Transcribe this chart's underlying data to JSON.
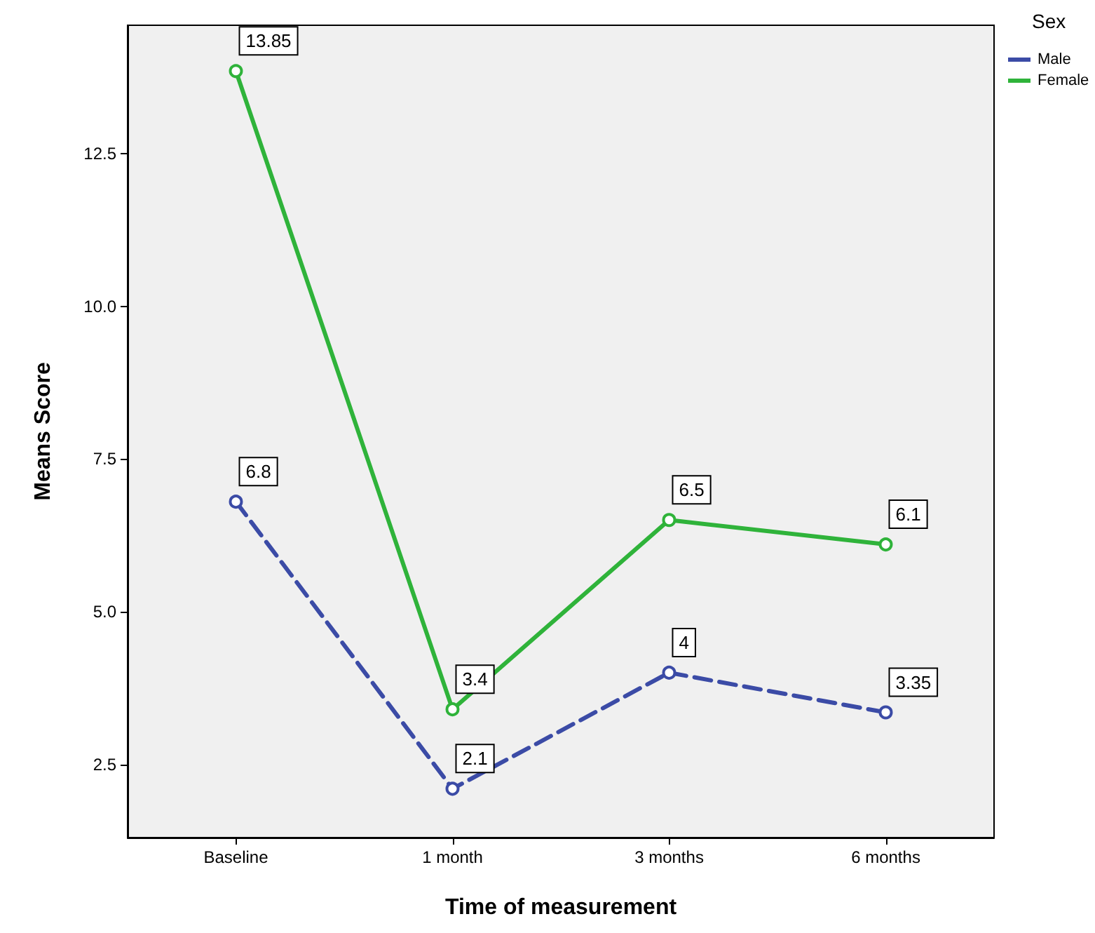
{
  "chart_data": {
    "type": "line",
    "xlabel": "Time of measurement",
    "ylabel": "Means Score",
    "legend_title": "Sex",
    "legend": "top right",
    "marker": "circle",
    "data_labels": true,
    "categories": [
      "Baseline",
      "1 month",
      "3 months",
      "6 months"
    ],
    "ylim": [
      1.3,
      14.6
    ],
    "yticks": [
      2.5,
      {
        "value": 5,
        "label": "5.0"
      },
      7.5,
      {
        "value": 10,
        "label": "10.0"
      },
      12.5
    ],
    "series": [
      {
        "name": "Male",
        "color": "#3b4ba6",
        "line_style": "dashed",
        "values": [
          6.8,
          2.1,
          4,
          3.35
        ]
      },
      {
        "name": "Female",
        "color": "#2fb33a",
        "line_style": "solid",
        "values": [
          13.85,
          3.4,
          6.5,
          6.1
        ]
      }
    ]
  }
}
